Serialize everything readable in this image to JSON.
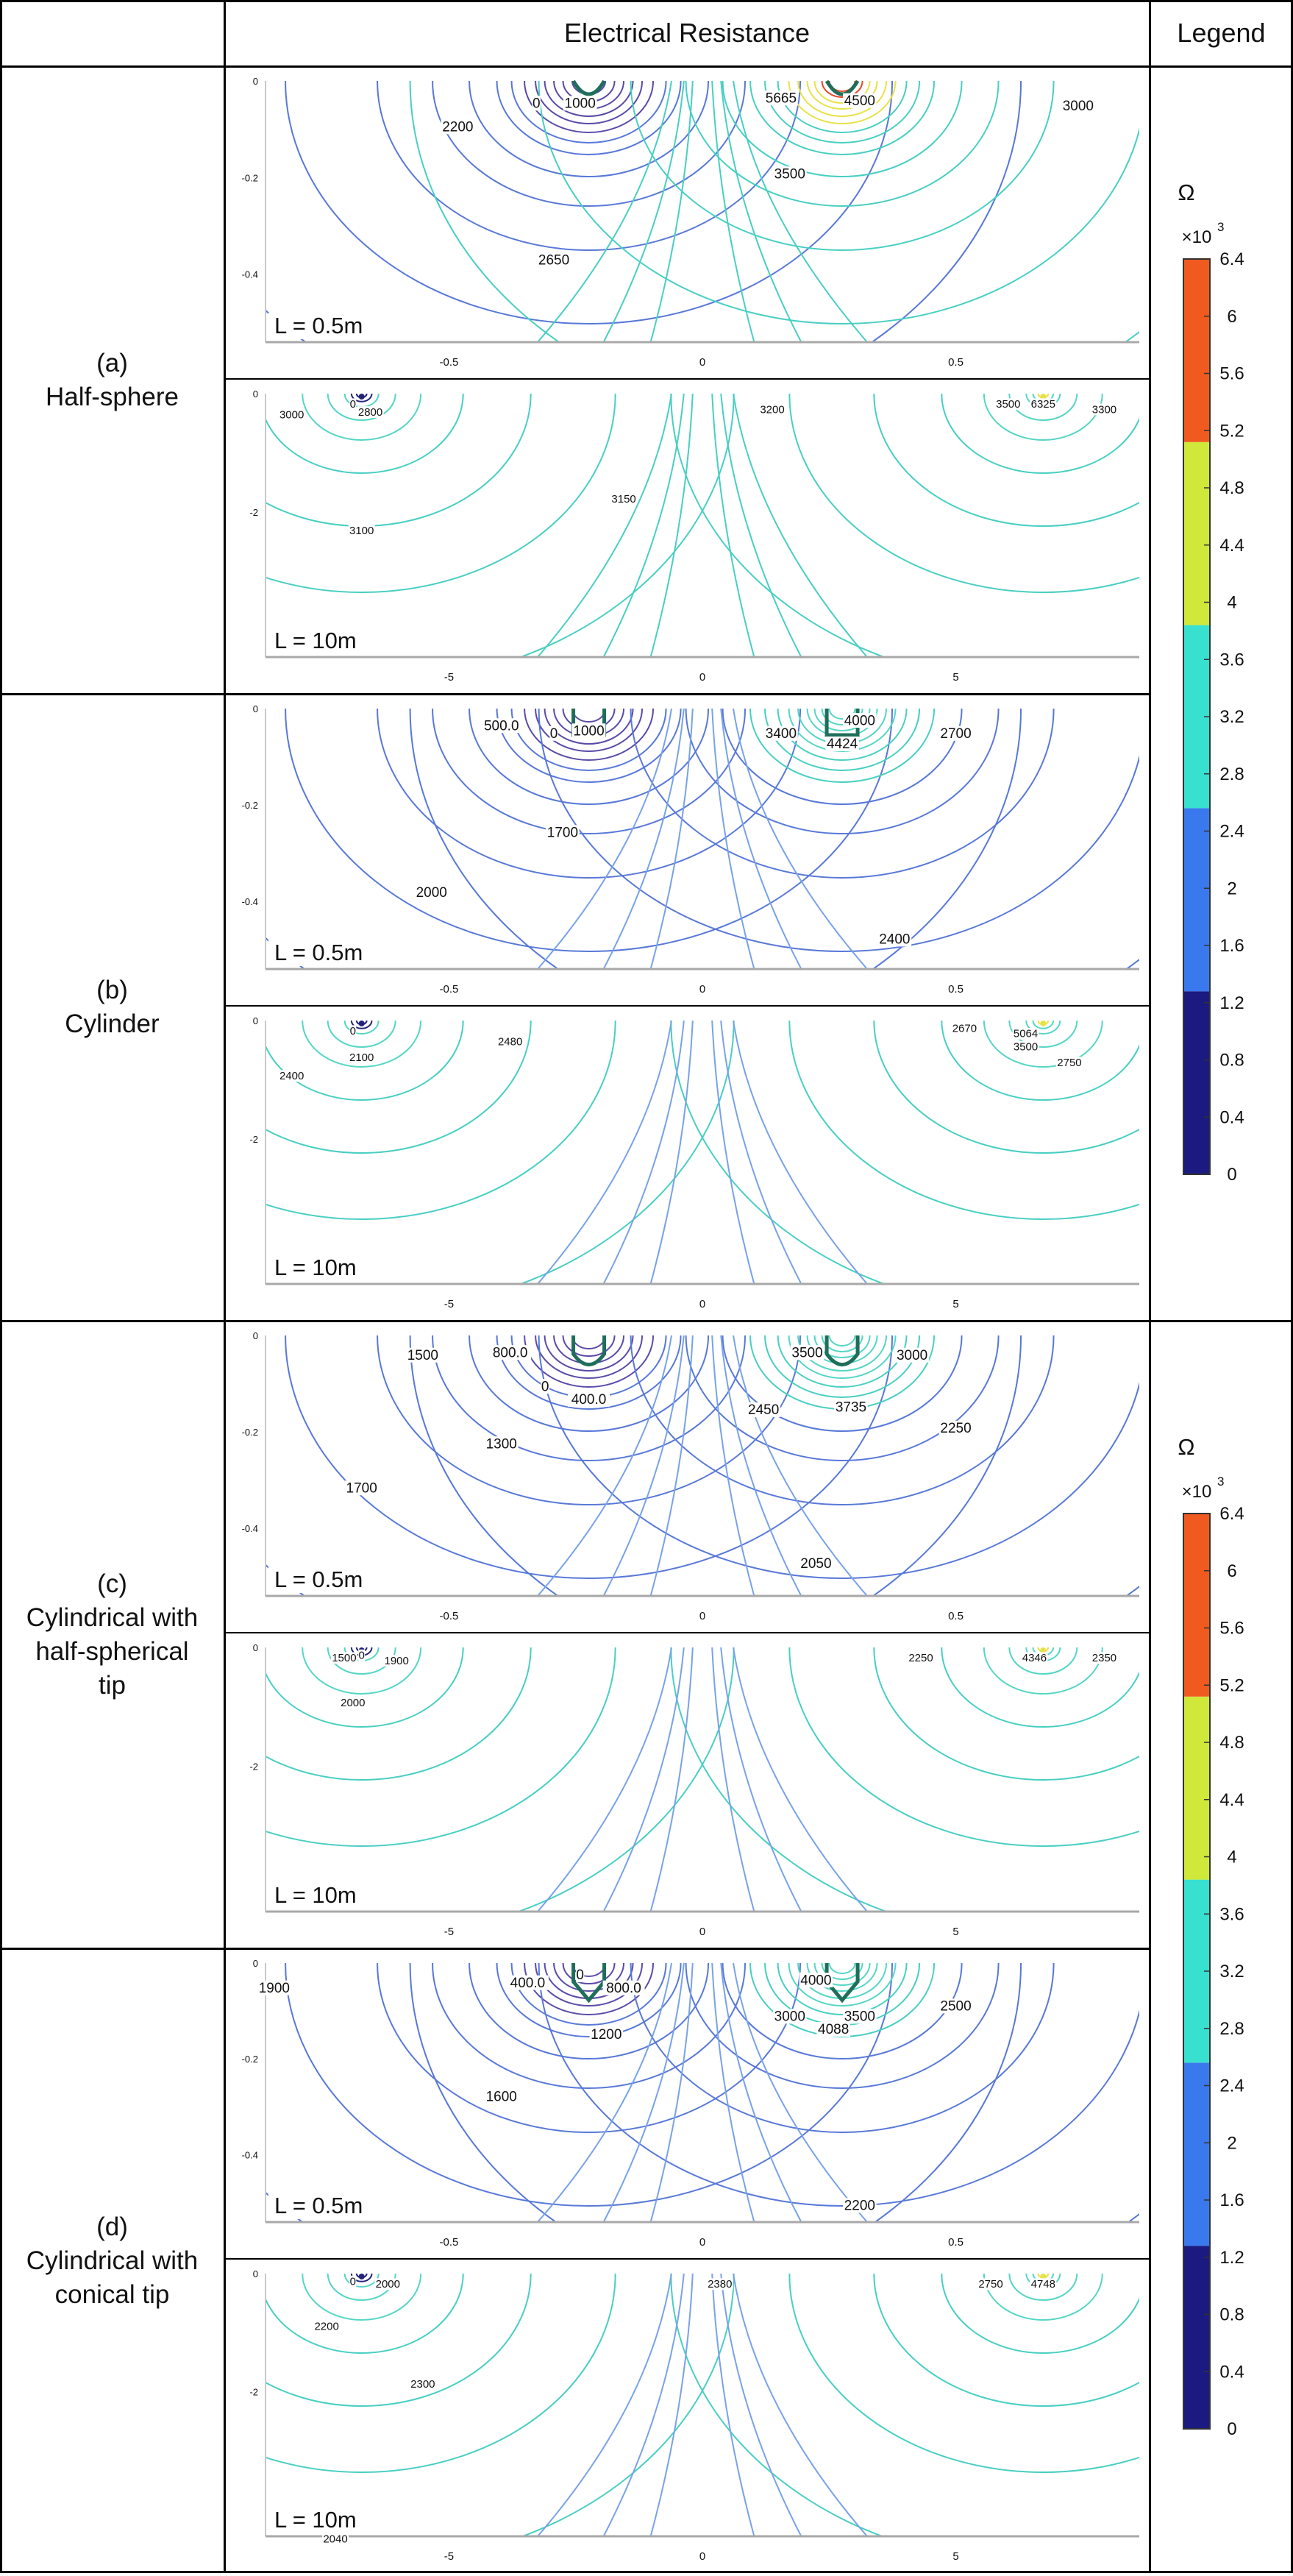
{
  "header": {
    "col_main": "Electrical Resistance",
    "col_legend": "Legend"
  },
  "rows": [
    {
      "id": "a",
      "label_lines": [
        "(a)",
        "Half-sphere"
      ],
      "plots": [
        {
          "length_label": "L = 0.5m",
          "x_ticks": [
            "-0.5",
            "0",
            "0.5"
          ],
          "y_ticks": [
            "0",
            "-0.2",
            "-0.4"
          ],
          "contour_labels": [
            "0",
            "1000",
            "2200",
            "5665",
            "4500",
            "3000",
            "3500",
            "2650"
          ]
        },
        {
          "length_label": "L = 10m",
          "x_ticks": [
            "-5",
            "0",
            "5"
          ],
          "y_ticks": [
            "0",
            "-2"
          ],
          "contour_labels": [
            "0",
            "2800",
            "3000",
            "3200",
            "3500",
            "6325",
            "3300",
            "3150",
            "3100"
          ]
        }
      ]
    },
    {
      "id": "b",
      "label_lines": [
        "(b)",
        "Cylinder"
      ],
      "plots": [
        {
          "length_label": "L = 0.5m",
          "x_ticks": [
            "-0.5",
            "0",
            "0.5"
          ],
          "y_ticks": [
            "0",
            "-0.2",
            "-0.4"
          ],
          "contour_labels": [
            "500.0",
            "0",
            "1000",
            "4000",
            "3400",
            "4424",
            "2700",
            "1700",
            "2000",
            "2400"
          ]
        },
        {
          "length_label": "L = 10m",
          "x_ticks": [
            "-5",
            "0",
            "5"
          ],
          "y_ticks": [
            "0",
            "-2"
          ],
          "contour_labels": [
            "0",
            "2100",
            "2400",
            "2480",
            "2670",
            "5064",
            "3500",
            "2750"
          ]
        }
      ]
    },
    {
      "id": "c",
      "label_lines": [
        "(c)",
        "Cylindrical with",
        "half-spherical",
        "tip"
      ],
      "plots": [
        {
          "length_label": "L = 0.5m",
          "x_ticks": [
            "-0.5",
            "0",
            "0.5"
          ],
          "y_ticks": [
            "0",
            "-0.2",
            "-0.4"
          ],
          "contour_labels": [
            "1500",
            "800.0",
            "0",
            "400.0",
            "3500",
            "3000",
            "2450",
            "3735",
            "1300",
            "2250",
            "1700",
            "2050"
          ]
        },
        {
          "length_label": "L = 10m",
          "x_ticks": [
            "-5",
            "0",
            "5"
          ],
          "y_ticks": [
            "0",
            "-2"
          ],
          "contour_labels": [
            "1500",
            "0",
            "1900",
            "2000",
            "2250",
            "4346",
            "2350"
          ]
        }
      ]
    },
    {
      "id": "d",
      "label_lines": [
        "(d)",
        "Cylindrical with",
        "conical tip"
      ],
      "plots": [
        {
          "length_label": "L = 0.5m",
          "x_ticks": [
            "-0.5",
            "0",
            "0.5"
          ],
          "y_ticks": [
            "0",
            "-0.2",
            "-0.4"
          ],
          "contour_labels": [
            "1900",
            "400.0",
            "0",
            "800.0",
            "1200",
            "4000",
            "3000",
            "4088",
            "3500",
            "2500",
            "1600",
            "2200"
          ]
        },
        {
          "length_label": "L = 10m",
          "x_ticks": [
            "-5",
            "0",
            "5"
          ],
          "y_ticks": [
            "0",
            "-2"
          ],
          "contour_labels": [
            "0",
            "2000",
            "2200",
            "2300",
            "2380",
            "2750",
            "4748",
            "2040"
          ]
        }
      ]
    }
  ],
  "legend": {
    "unit": "Ω",
    "multiplier_base": "×10",
    "multiplier_exp": "3",
    "ticks": [
      "6.4",
      "6",
      "5.6",
      "5.2",
      "4.8",
      "4.4",
      "4",
      "3.6",
      "3.2",
      "2.8",
      "2.4",
      "2",
      "1.6",
      "1.2",
      "0.8",
      "0.4",
      "0"
    ],
    "bands": [
      {
        "from": 0,
        "to": 1.28,
        "color": "#1a1a80"
      },
      {
        "from": 1.28,
        "to": 2.56,
        "color": "#3a78ee"
      },
      {
        "from": 2.56,
        "to": 3.84,
        "color": "#38e0d0"
      },
      {
        "from": 3.84,
        "to": 5.12,
        "color": "#cfe83a"
      },
      {
        "from": 5.12,
        "to": 6.4,
        "color": "#f05a1e"
      }
    ]
  }
}
